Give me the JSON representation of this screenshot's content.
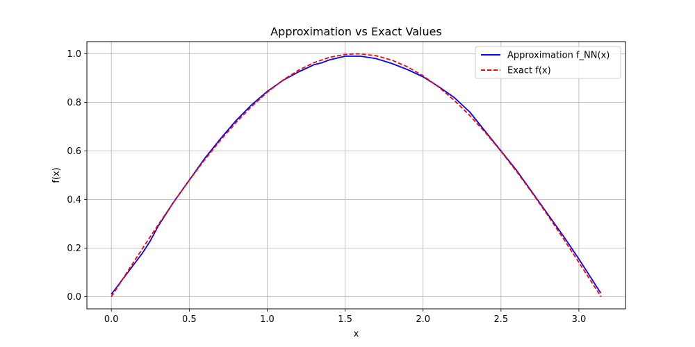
{
  "chart_data": {
    "type": "line",
    "title": "Approximation vs Exact Values",
    "xlabel": "x",
    "ylabel": "f(x)",
    "xlim": [
      -0.157,
      3.299
    ],
    "ylim": [
      -0.05,
      1.05
    ],
    "xticks": [
      0.0,
      0.5,
      1.0,
      1.5,
      2.0,
      2.5,
      3.0
    ],
    "xtick_labels": [
      "0.0",
      "0.5",
      "1.0",
      "1.5",
      "2.0",
      "2.5",
      "3.0"
    ],
    "yticks": [
      0.0,
      0.2,
      0.4,
      0.6,
      0.8,
      1.0
    ],
    "ytick_labels": [
      "0.0",
      "0.2",
      "0.4",
      "0.6",
      "0.8",
      "1.0"
    ],
    "grid": true,
    "legend_position": "top-right",
    "series": [
      {
        "name": "Approximation f_NN(x)",
        "color": "#0000ff",
        "style": "solid",
        "x": [
          0.0,
          0.1,
          0.2,
          0.25,
          0.3,
          0.4,
          0.5,
          0.6,
          0.7,
          0.8,
          0.9,
          1.0,
          1.1,
          1.2,
          1.3,
          1.35,
          1.4,
          1.5,
          1.6,
          1.7,
          1.8,
          1.9,
          2.0,
          2.1,
          2.2,
          2.3,
          2.4,
          2.5,
          2.6,
          2.7,
          2.8,
          2.9,
          3.0,
          3.1,
          3.14
        ],
        "y": [
          0.01,
          0.095,
          0.18,
          0.23,
          0.29,
          0.39,
          0.48,
          0.57,
          0.65,
          0.725,
          0.79,
          0.845,
          0.89,
          0.925,
          0.955,
          0.963,
          0.975,
          0.99,
          0.99,
          0.98,
          0.96,
          0.935,
          0.905,
          0.865,
          0.82,
          0.76,
          0.68,
          0.6,
          0.52,
          0.43,
          0.34,
          0.25,
          0.155,
          0.055,
          0.015
        ]
      },
      {
        "name": "Exact f(x)",
        "color": "#ff0000",
        "style": "dashed",
        "x": [
          0.0,
          0.1,
          0.2,
          0.3,
          0.4,
          0.5,
          0.6,
          0.7,
          0.8,
          0.9,
          1.0,
          1.1,
          1.2,
          1.3,
          1.4,
          1.5,
          1.5708,
          1.6,
          1.7,
          1.8,
          1.9,
          2.0,
          2.1,
          2.2,
          2.3,
          2.4,
          2.5,
          2.6,
          2.7,
          2.8,
          2.9,
          3.0,
          3.1,
          3.1416
        ],
        "y": [
          0.0,
          0.0998,
          0.1987,
          0.2955,
          0.3894,
          0.4794,
          0.5646,
          0.6442,
          0.7174,
          0.7833,
          0.8415,
          0.8912,
          0.932,
          0.9636,
          0.9854,
          0.9975,
          1.0,
          0.9996,
          0.9917,
          0.9738,
          0.9463,
          0.9093,
          0.8632,
          0.8085,
          0.7457,
          0.6755,
          0.5985,
          0.5155,
          0.4274,
          0.335,
          0.2392,
          0.1411,
          0.0416,
          0.0
        ]
      }
    ]
  }
}
